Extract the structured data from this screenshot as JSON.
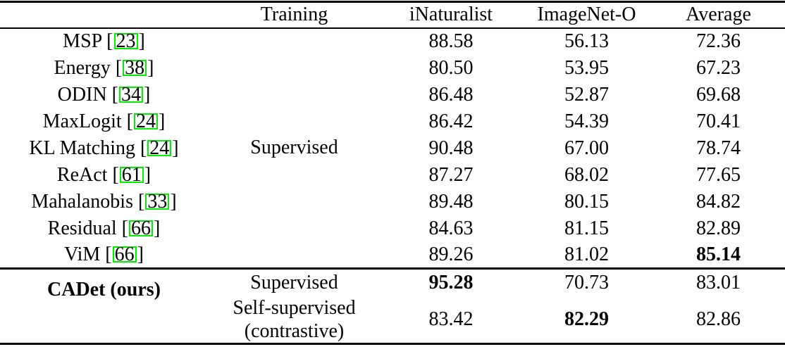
{
  "colors": {
    "citation_box": "#00ee00"
  },
  "header": {
    "method": "",
    "training": "Training",
    "inaturalist": "iNaturalist",
    "imagenet_o": "ImageNet-O",
    "average": "Average"
  },
  "baselines": {
    "training": "Supervised",
    "rows": [
      {
        "method": "MSP",
        "ref": "23",
        "inaturalist": "88.58",
        "imagenet_o": "56.13",
        "average": "72.36",
        "bold": []
      },
      {
        "method": "Energy",
        "ref": "38",
        "inaturalist": "80.50",
        "imagenet_o": "53.95",
        "average": "67.23",
        "bold": []
      },
      {
        "method": "ODIN",
        "ref": "34",
        "inaturalist": "86.48",
        "imagenet_o": "52.87",
        "average": "69.68",
        "bold": []
      },
      {
        "method": "MaxLogit",
        "ref": "24",
        "inaturalist": "86.42",
        "imagenet_o": "54.39",
        "average": "70.41",
        "bold": []
      },
      {
        "method": "KL Matching",
        "ref": "24",
        "inaturalist": "90.48",
        "imagenet_o": "67.00",
        "average": "78.74",
        "bold": []
      },
      {
        "method": "ReAct",
        "ref": "61",
        "inaturalist": "87.27",
        "imagenet_o": "68.02",
        "average": "77.65",
        "bold": []
      },
      {
        "method": "Mahalanobis",
        "ref": "33",
        "inaturalist": "89.48",
        "imagenet_o": "80.15",
        "average": "84.82",
        "bold": []
      },
      {
        "method": "Residual",
        "ref": "66",
        "inaturalist": "84.63",
        "imagenet_o": "81.15",
        "average": "82.89",
        "bold": []
      },
      {
        "method": "ViM",
        "ref": "66",
        "inaturalist": "89.26",
        "imagenet_o": "81.02",
        "average": "85.14",
        "bold": [
          "average"
        ]
      }
    ]
  },
  "cadet": {
    "method": "CADet (ours)",
    "rows": [
      {
        "training": [
          "Supervised"
        ],
        "inaturalist": "95.28",
        "imagenet_o": "70.73",
        "average": "83.01",
        "bold": [
          "inaturalist"
        ]
      },
      {
        "training": [
          "Self-supervised",
          "(contrastive)"
        ],
        "inaturalist": "83.42",
        "imagenet_o": "82.29",
        "average": "82.86",
        "bold": [
          "imagenet_o"
        ]
      }
    ]
  }
}
